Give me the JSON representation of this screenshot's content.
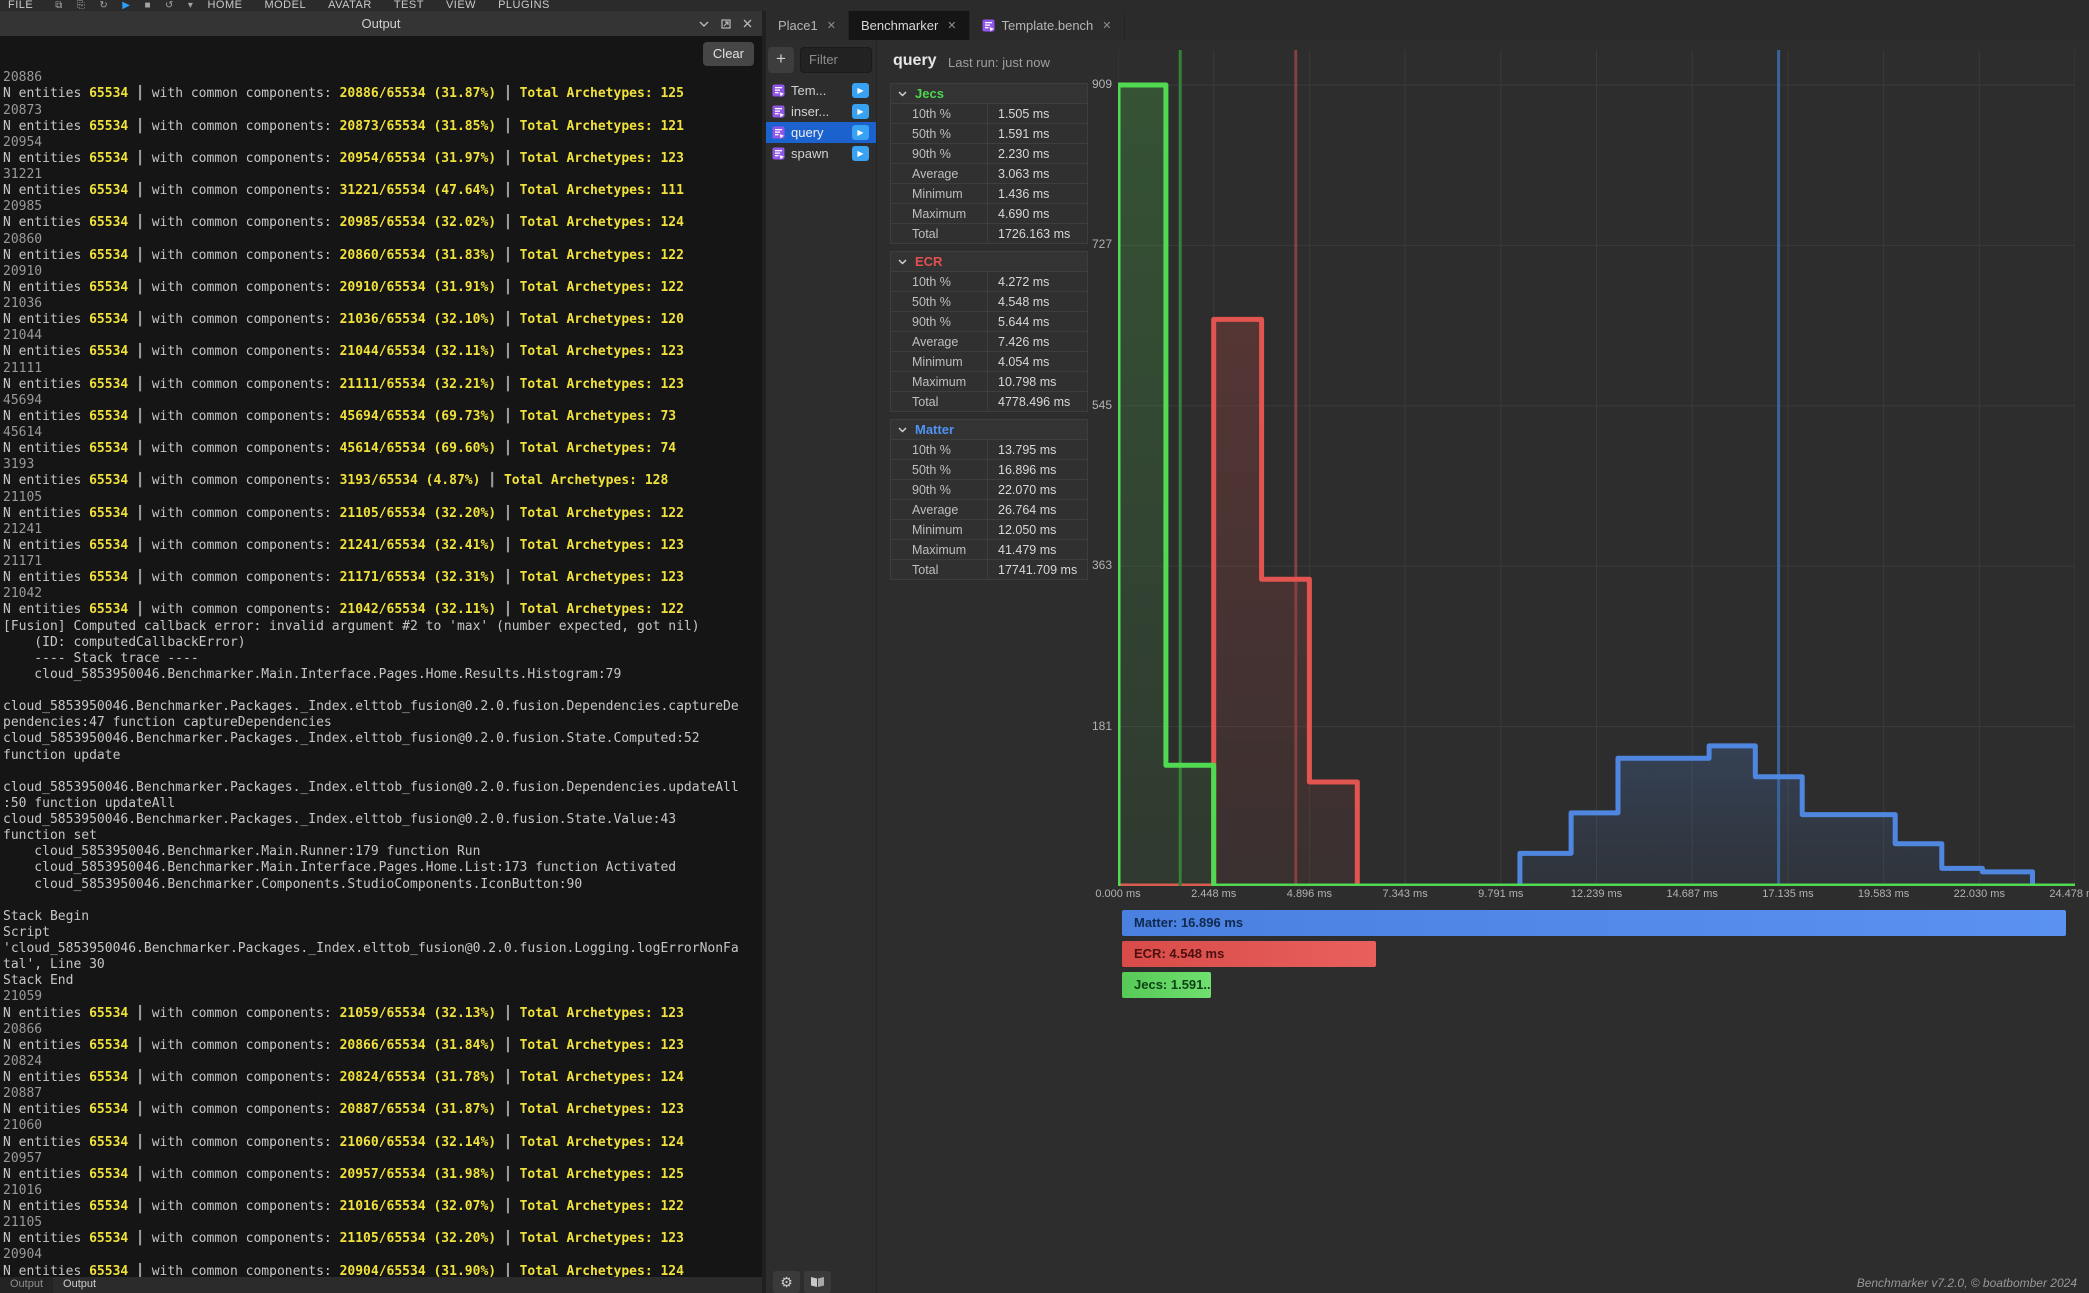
{
  "menubar": {
    "items": [
      "FILE",
      "HOME",
      "MODEL",
      "AVATAR",
      "TEST",
      "VIEW",
      "PLUGINS"
    ],
    "icons": [
      "clipboard-icon",
      "paste-icon",
      "redo-icon",
      "play-icon",
      "stop-icon",
      "undo-icon",
      "caret-down-icon"
    ]
  },
  "output_panel": {
    "title": "Output",
    "clear_label": "Clear",
    "bottom_tabs": [
      "Output",
      "Output"
    ],
    "strings": {
      "entities_prefix": "N entities ",
      "entities_value": "65534",
      "components_label": " with common components: ",
      "archetypes_label": "Total Archetypes: ",
      "separator": "┃"
    },
    "console_lines": [
      {
        "k": "num",
        "t": "20886"
      },
      {
        "k": "res",
        "f": "20886/65534",
        "p": "(31.87%)",
        "a": "125"
      },
      {
        "k": "num",
        "t": "20873"
      },
      {
        "k": "res",
        "f": "20873/65534",
        "p": "(31.85%)",
        "a": "121"
      },
      {
        "k": "num",
        "t": "20954"
      },
      {
        "k": "res",
        "f": "20954/65534",
        "p": "(31.97%)",
        "a": "123"
      },
      {
        "k": "num",
        "t": "31221"
      },
      {
        "k": "res",
        "f": "31221/65534",
        "p": "(47.64%)",
        "a": "111"
      },
      {
        "k": "num",
        "t": "20985"
      },
      {
        "k": "res",
        "f": "20985/65534",
        "p": "(32.02%)",
        "a": "124"
      },
      {
        "k": "num",
        "t": "20860"
      },
      {
        "k": "res",
        "f": "20860/65534",
        "p": "(31.83%)",
        "a": "122"
      },
      {
        "k": "num",
        "t": "20910"
      },
      {
        "k": "res",
        "f": "20910/65534",
        "p": "(31.91%)",
        "a": "122"
      },
      {
        "k": "num",
        "t": "21036"
      },
      {
        "k": "res",
        "f": "21036/65534",
        "p": "(32.10%)",
        "a": "120"
      },
      {
        "k": "num",
        "t": "21044"
      },
      {
        "k": "res",
        "f": "21044/65534",
        "p": "(32.11%)",
        "a": "123"
      },
      {
        "k": "num",
        "t": "21111"
      },
      {
        "k": "res",
        "f": "21111/65534",
        "p": "(32.21%)",
        "a": "123"
      },
      {
        "k": "num",
        "t": "45694"
      },
      {
        "k": "res",
        "f": "45694/65534",
        "p": "(69.73%)",
        "a": "73"
      },
      {
        "k": "num",
        "t": "45614"
      },
      {
        "k": "res",
        "f": "45614/65534",
        "p": "(69.60%)",
        "a": "74"
      },
      {
        "k": "num",
        "t": "3193"
      },
      {
        "k": "res",
        "f": "3193/65534",
        "p": "(4.87%)",
        "a": "128"
      },
      {
        "k": "num",
        "t": "21105"
      },
      {
        "k": "res",
        "f": "21105/65534",
        "p": "(32.20%)",
        "a": "122"
      },
      {
        "k": "num",
        "t": "21241"
      },
      {
        "k": "res",
        "f": "21241/65534",
        "p": "(32.41%)",
        "a": "123"
      },
      {
        "k": "num",
        "t": "21171"
      },
      {
        "k": "res",
        "f": "21171/65534",
        "p": "(32.31%)",
        "a": "123"
      },
      {
        "k": "num",
        "t": "21042"
      },
      {
        "k": "res",
        "f": "21042/65534",
        "p": "(32.11%)",
        "a": "122"
      },
      {
        "k": "txt",
        "t": "[Fusion] Computed callback error: invalid argument #2 to 'max' (number expected, got nil)"
      },
      {
        "k": "txt",
        "t": "    (ID: computedCallbackError)"
      },
      {
        "k": "txt",
        "t": "    ---- Stack trace ----"
      },
      {
        "k": "txt",
        "t": "    cloud_5853950046.Benchmarker.Main.Interface.Pages.Home.Results.Histogram:79"
      },
      {
        "k": "blank"
      },
      {
        "k": "txt",
        "t": "cloud_5853950046.Benchmarker.Packages._Index.elttob_fusion@0.2.0.fusion.Dependencies.captureDe"
      },
      {
        "k": "txt",
        "t": "pendencies:47 function captureDependencies"
      },
      {
        "k": "txt",
        "t": "cloud_5853950046.Benchmarker.Packages._Index.elttob_fusion@0.2.0.fusion.State.Computed:52"
      },
      {
        "k": "txt",
        "t": "function update"
      },
      {
        "k": "blank"
      },
      {
        "k": "txt",
        "t": "cloud_5853950046.Benchmarker.Packages._Index.elttob_fusion@0.2.0.fusion.Dependencies.updateAll"
      },
      {
        "k": "txt",
        "t": ":50 function updateAll"
      },
      {
        "k": "txt",
        "t": "cloud_5853950046.Benchmarker.Packages._Index.elttob_fusion@0.2.0.fusion.State.Value:43"
      },
      {
        "k": "txt",
        "t": "function set"
      },
      {
        "k": "txt",
        "t": "    cloud_5853950046.Benchmarker.Main.Runner:179 function Run"
      },
      {
        "k": "txt",
        "t": "    cloud_5853950046.Benchmarker.Main.Interface.Pages.Home.List:173 function Activated"
      },
      {
        "k": "txt",
        "t": "    cloud_5853950046.Benchmarker.Components.StudioComponents.IconButton:90"
      },
      {
        "k": "blank"
      },
      {
        "k": "txt",
        "t": "Stack Begin"
      },
      {
        "k": "txt",
        "t": "Script"
      },
      {
        "k": "txt",
        "t": "'cloud_5853950046.Benchmarker.Packages._Index.elttob_fusion@0.2.0.fusion.Logging.logErrorNonFa"
      },
      {
        "k": "txt",
        "t": "tal', Line 30"
      },
      {
        "k": "txt",
        "t": "Stack End"
      },
      {
        "k": "num",
        "t": "21059"
      },
      {
        "k": "res",
        "f": "21059/65534",
        "p": "(32.13%)",
        "a": "123"
      },
      {
        "k": "num",
        "t": "20866"
      },
      {
        "k": "res",
        "f": "20866/65534",
        "p": "(31.84%)",
        "a": "123"
      },
      {
        "k": "num",
        "t": "20824"
      },
      {
        "k": "res",
        "f": "20824/65534",
        "p": "(31.78%)",
        "a": "124"
      },
      {
        "k": "num",
        "t": "20887"
      },
      {
        "k": "res",
        "f": "20887/65534",
        "p": "(31.87%)",
        "a": "123"
      },
      {
        "k": "num",
        "t": "21060"
      },
      {
        "k": "res",
        "f": "21060/65534",
        "p": "(32.14%)",
        "a": "124"
      },
      {
        "k": "num",
        "t": "20957"
      },
      {
        "k": "res",
        "f": "20957/65534",
        "p": "(31.98%)",
        "a": "125"
      },
      {
        "k": "num",
        "t": "21016"
      },
      {
        "k": "res",
        "f": "21016/65534",
        "p": "(32.07%)",
        "a": "122"
      },
      {
        "k": "num",
        "t": "21105"
      },
      {
        "k": "res",
        "f": "21105/65534",
        "p": "(32.20%)",
        "a": "123"
      },
      {
        "k": "num",
        "t": "20904"
      },
      {
        "k": "res",
        "f": "20904/65534",
        "p": "(31.90%)",
        "a": "124"
      }
    ]
  },
  "tabs": [
    {
      "label": "Place1",
      "active": false,
      "icon": null
    },
    {
      "label": "Benchmarker",
      "active": true,
      "icon": null
    },
    {
      "label": "Template.bench",
      "active": false,
      "icon": "script-icon"
    }
  ],
  "bench_list": {
    "filter_placeholder": "Filter",
    "add_label": "+",
    "items": [
      {
        "label": "Tem...",
        "selected": false
      },
      {
        "label": "inser...",
        "selected": false
      },
      {
        "label": "query",
        "selected": true
      },
      {
        "label": "spawn",
        "selected": false
      }
    ]
  },
  "results": {
    "title": "query",
    "last_run": "Last run: just now",
    "row_labels": [
      "10th %",
      "50th %",
      "90th %",
      "Average",
      "Minimum",
      "Maximum",
      "Total"
    ],
    "sections": [
      {
        "name": "Jecs",
        "color": "#4ed44e",
        "values": [
          "1.505 ms",
          "1.591 ms",
          "2.230 ms",
          "3.063 ms",
          "1.436 ms",
          "4.690 ms",
          "1726.163 ms"
        ]
      },
      {
        "name": "ECR",
        "color": "#e25050",
        "values": [
          "4.272 ms",
          "4.548 ms",
          "5.644 ms",
          "7.426 ms",
          "4.054 ms",
          "10.798 ms",
          "4778.496 ms"
        ]
      },
      {
        "name": "Matter",
        "color": "#4f93f2",
        "values": [
          "13.795 ms",
          "16.896 ms",
          "22.070 ms",
          "26.764 ms",
          "12.050 ms",
          "41.479 ms",
          "17741.709 ms"
        ]
      }
    ]
  },
  "chart_data": {
    "type": "histogram-step",
    "x_max_ms": 24.478,
    "x_tick_labels": [
      "0.000 ms",
      "2.448 ms",
      "4.896 ms",
      "7.343 ms",
      "9.791 ms",
      "12.239 ms",
      "14.687 ms",
      "17.135 ms",
      "19.583 ms",
      "22.030 ms",
      "24.478 ms"
    ],
    "y_ticks": [
      181,
      363,
      545,
      727,
      909
    ],
    "y_max_count": 909,
    "grid_color": "#3a3a3a",
    "series": [
      {
        "name": "Matter",
        "color": "#4f87e0",
        "median_ms": 16.896,
        "median_color": "#3a639c",
        "steps": [
          [
            10.28,
            37
          ],
          [
            11.59,
            83
          ],
          [
            12.79,
            145
          ],
          [
            15.12,
            159
          ],
          [
            16.3,
            124
          ],
          [
            17.5,
            81
          ],
          [
            19.88,
            48
          ],
          [
            21.07,
            20
          ],
          [
            22.11,
            16
          ]
        ],
        "end_ms": 23.39
      },
      {
        "name": "ECR",
        "color": "#e25450",
        "median_ms": 4.548,
        "median_color": "#83403e",
        "steps": [
          [
            2.448,
            643
          ],
          [
            3.672,
            348
          ],
          [
            4.896,
            118
          ]
        ],
        "end_ms": 6.12
      },
      {
        "name": "Jecs",
        "color": "#52d952",
        "median_ms": 1.591,
        "median_color": "#37803a",
        "steps": [
          [
            0,
            909
          ],
          [
            1.224,
            137
          ]
        ],
        "end_ms": 2.448
      }
    ],
    "legend": [
      {
        "label": "Matter: 16.896 ms",
        "value_ms": 16.896,
        "bg1": "#4a80e0",
        "bg2": "#5b92f2",
        "text_color": "#10294f"
      },
      {
        "label": "ECR: 4.548 ms",
        "value_ms": 4.548,
        "bg1": "#d84b48",
        "bg2": "#e8605c",
        "text_color": "#4c100f"
      },
      {
        "label": "Jecs: 1.591...",
        "value_ms": 1.591,
        "bg1": "#57c957",
        "bg2": "#6fe06f",
        "text_color": "#0d3f14"
      }
    ],
    "legend_max_ms": 16.896
  },
  "footer": {
    "credit": "Benchmarker v7.2.0, © boatbomber 2024"
  }
}
